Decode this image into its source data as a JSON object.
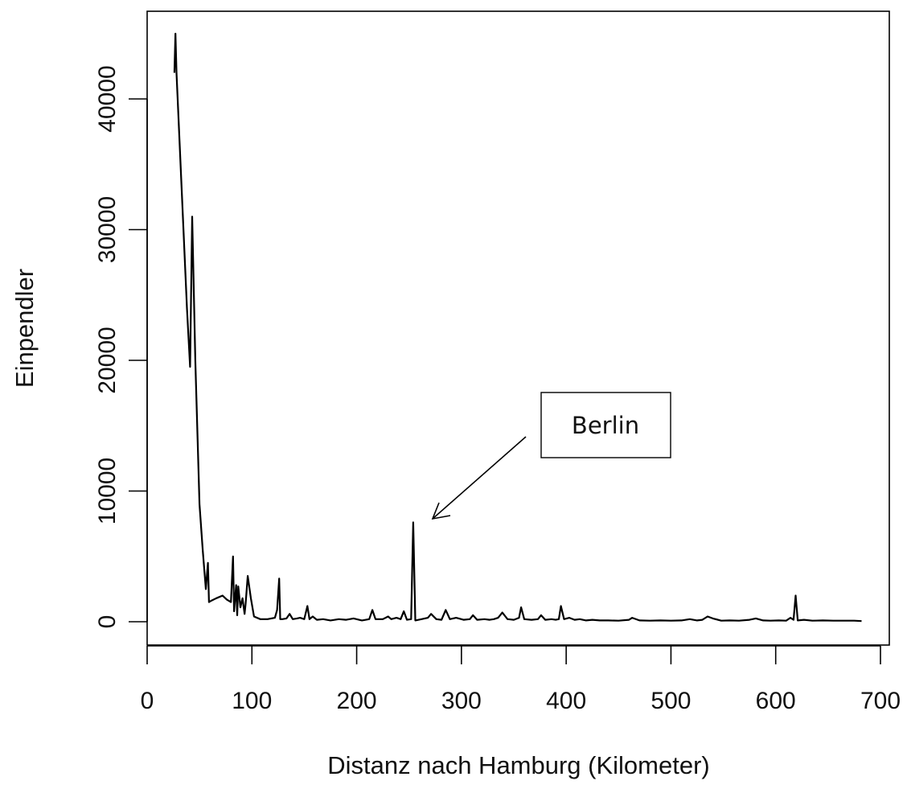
{
  "chart_data": {
    "type": "line",
    "title": "",
    "xlabel": "Distanz nach Hamburg (Kilometer)",
    "ylabel": "Einpendler",
    "xlim": [
      0,
      700
    ],
    "ylim": [
      0,
      40000
    ],
    "x_ticks": [
      {
        "value": 0,
        "label": "0"
      },
      {
        "value": 100,
        "label": "100"
      },
      {
        "value": 200,
        "label": "200"
      },
      {
        "value": 300,
        "label": "300"
      },
      {
        "value": 400,
        "label": "400"
      },
      {
        "value": 500,
        "label": "500"
      },
      {
        "value": 600,
        "label": "600"
      },
      {
        "value": 700,
        "label": "700"
      }
    ],
    "y_ticks": [
      {
        "value": 0,
        "label": "0"
      },
      {
        "value": 10000,
        "label": "10000"
      },
      {
        "value": 20000,
        "label": "20000"
      },
      {
        "value": 30000,
        "label": "30000"
      },
      {
        "value": 40000,
        "label": "40000"
      }
    ],
    "grid": false,
    "legend": "none",
    "line_color": "#000000",
    "series": [
      {
        "x": [
          26,
          27,
          28,
          33,
          38,
          41,
          43,
          46,
          50,
          53,
          56,
          58,
          59,
          61,
          66,
          72,
          76,
          80,
          82,
          83,
          85,
          86,
          87,
          89,
          91,
          93,
          94,
          96,
          99,
          102,
          108,
          115,
          122,
          124,
          126,
          127,
          129,
          133,
          136,
          139,
          143,
          146,
          150,
          153,
          155,
          158,
          162,
          168,
          175,
          183,
          190,
          197,
          205,
          212,
          215,
          218,
          225,
          230,
          233,
          238,
          242,
          245,
          248,
          252,
          254,
          256,
          262,
          268,
          271,
          276,
          281,
          285,
          289,
          295,
          302,
          308,
          311,
          315,
          322,
          327,
          331,
          335,
          339,
          344,
          350,
          355,
          357,
          360,
          367,
          373,
          376,
          380,
          386,
          390,
          393,
          395,
          398,
          403,
          408,
          413,
          419,
          425,
          432,
          440,
          450,
          460,
          463,
          470,
          480,
          490,
          500,
          510,
          518,
          525,
          530,
          535,
          540,
          548,
          556,
          565,
          575,
          581,
          588,
          595,
          603,
          610,
          614,
          617,
          619,
          621,
          627,
          635,
          645,
          655,
          665,
          675,
          682
        ],
        "y": [
          42000,
          45000,
          42000,
          33000,
          24000,
          19500,
          31000,
          20000,
          9000,
          5500,
          2500,
          4500,
          1500,
          1600,
          1800,
          2000,
          1700,
          1500,
          5000,
          800,
          2800,
          500,
          2700,
          1100,
          1800,
          600,
          1400,
          3500,
          1800,
          400,
          200,
          200,
          300,
          900,
          3300,
          200,
          200,
          250,
          600,
          200,
          250,
          300,
          200,
          1200,
          200,
          400,
          150,
          200,
          100,
          200,
          150,
          250,
          100,
          200,
          900,
          200,
          200,
          400,
          200,
          300,
          200,
          800,
          150,
          200,
          7600,
          100,
          200,
          300,
          600,
          200,
          150,
          900,
          200,
          300,
          150,
          200,
          500,
          150,
          200,
          150,
          200,
          300,
          700,
          200,
          150,
          300,
          1100,
          200,
          150,
          200,
          500,
          150,
          200,
          150,
          200,
          1200,
          200,
          300,
          150,
          200,
          100,
          150,
          100,
          100,
          80,
          150,
          300,
          100,
          80,
          100,
          80,
          100,
          200,
          100,
          150,
          400,
          250,
          80,
          100,
          80,
          150,
          250,
          100,
          80,
          100,
          80,
          300,
          150,
          2000,
          100,
          150,
          80,
          100,
          80,
          80,
          80,
          50
        ]
      }
    ],
    "annotations": [
      {
        "text": "Berlin",
        "points_to": {
          "x": 254,
          "y": 7600
        }
      }
    ]
  }
}
